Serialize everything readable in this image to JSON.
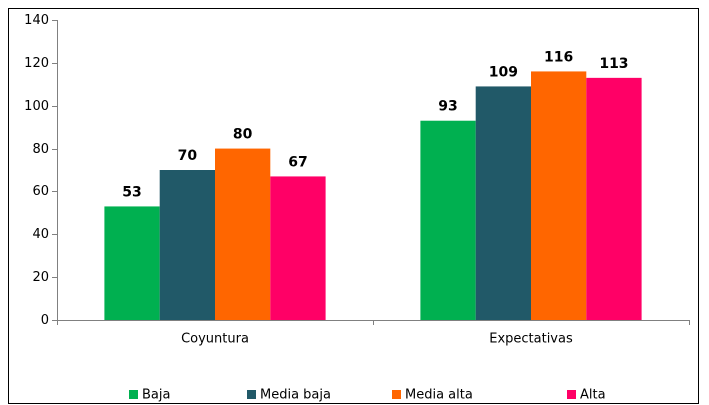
{
  "chart_data": {
    "type": "bar",
    "categories": [
      "Coyuntura",
      "Expectativas"
    ],
    "series": [
      {
        "name": "Baja",
        "color": "#00b050",
        "values": [
          53,
          93
        ]
      },
      {
        "name": "Media baja",
        "color": "#215968",
        "values": [
          70,
          109
        ]
      },
      {
        "name": "Media alta",
        "color": "#ff6600",
        "values": [
          80,
          116
        ]
      },
      {
        "name": "Alta",
        "color": "#ff0066",
        "values": [
          67,
          113
        ]
      }
    ],
    "ylim": [
      0,
      140
    ],
    "yticks": [
      0,
      20,
      40,
      60,
      80,
      100,
      120,
      140
    ],
    "grid": false,
    "legend": "bottom"
  }
}
